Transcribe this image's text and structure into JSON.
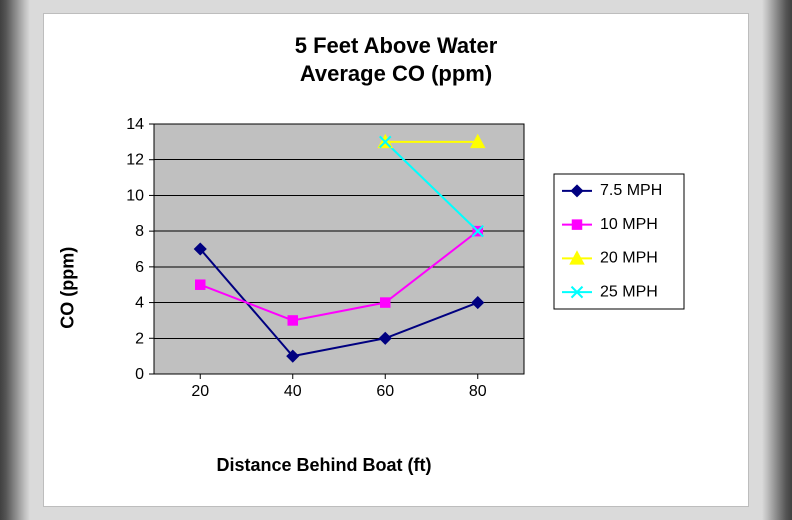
{
  "title_line1": "5 Feet Above Water",
  "title_line2": "Average CO (ppm)",
  "chart": {
    "type": "line",
    "xlabel": "Distance Behind Boat (ft)",
    "ylabel": "CO (ppm)",
    "x_categories": [
      20,
      40,
      60,
      80
    ],
    "ylim": [
      0,
      14
    ],
    "ytick_step": 2,
    "yticks": [
      0,
      2,
      4,
      6,
      8,
      10,
      12,
      14
    ],
    "background_color": "#ffffff",
    "plot_area_color": "#c0c0c0",
    "grid_color": "#000000",
    "axis_color": "#000000",
    "tick_color": "#000000",
    "axis_fontsize": 16,
    "label_fontsize": 18,
    "title_fontsize": 22,
    "series": [
      {
        "name": "7.5 MPH",
        "color": "#000080",
        "marker": "diamond",
        "marker_fill": "#000080",
        "line_width": 2,
        "x": [
          20,
          40,
          60,
          80
        ],
        "y": [
          7,
          1,
          2,
          4
        ]
      },
      {
        "name": "10 MPH",
        "color": "#ff00ff",
        "marker": "square",
        "marker_fill": "#ff00ff",
        "line_width": 2,
        "x": [
          20,
          40,
          60,
          80
        ],
        "y": [
          5,
          3,
          4,
          8
        ]
      },
      {
        "name": "20 MPH",
        "color": "#ffff00",
        "marker": "triangle",
        "marker_fill": "#ffff00",
        "line_width": 2,
        "x": [
          60,
          80
        ],
        "y": [
          13,
          13
        ]
      },
      {
        "name": "25 MPH",
        "color": "#00ffff",
        "marker": "x",
        "marker_fill": "none",
        "line_width": 2,
        "x": [
          60,
          80
        ],
        "y": [
          13,
          8
        ]
      }
    ],
    "legend": {
      "position": "right",
      "border_color": "#000000",
      "fill": "#ffffff",
      "fontsize": 16
    }
  }
}
